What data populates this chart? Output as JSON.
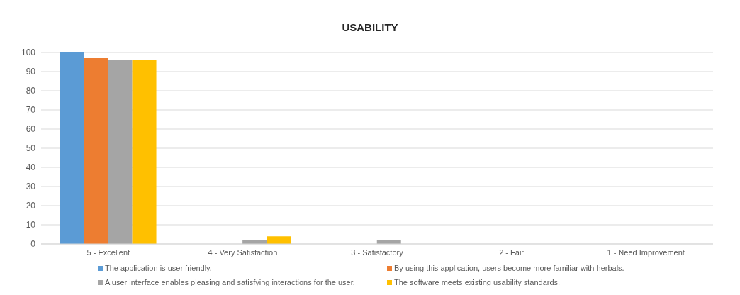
{
  "chart_data": {
    "type": "bar",
    "title": "USABILITY",
    "categories": [
      "5 - Excellent",
      "4 - Very Satisfaction",
      "3 - Satisfactory",
      "2 - Fair",
      "1 - Need Improvement"
    ],
    "series": [
      {
        "name": "The application is user friendly.",
        "color": "#5b9bd5",
        "values": [
          100,
          0,
          0,
          0,
          0
        ]
      },
      {
        "name": "By using this application, users become more familiar with herbals.",
        "color": "#ed7d31",
        "values": [
          97,
          0,
          0,
          0,
          0
        ]
      },
      {
        "name": "A user interface enables pleasing and satisfying interactions for the user.",
        "color": "#a5a5a5",
        "values": [
          96,
          2,
          2,
          0,
          0
        ]
      },
      {
        "name": "The software meets existing usability standards.",
        "color": "#ffc000",
        "values": [
          96,
          4,
          0,
          0,
          0
        ]
      }
    ],
    "ylim": [
      0,
      100
    ],
    "yticks": [
      0,
      10,
      20,
      30,
      40,
      50,
      60,
      70,
      80,
      90,
      100
    ],
    "grid": "y",
    "legend": "bottom"
  }
}
